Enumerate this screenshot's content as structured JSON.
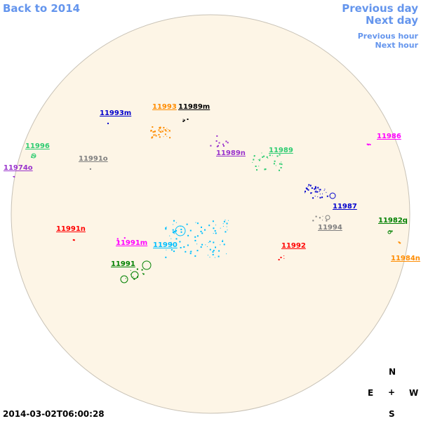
{
  "nav": {
    "back": "Back to 2014",
    "prev_day": "Previous day",
    "next_day": "Next day",
    "prev_hour": "Previous hour",
    "next_hour": "Next hour"
  },
  "timestamp": "2014-03-02T06:00:28",
  "compass": {
    "n": "N",
    "s": "S",
    "e": "E",
    "w": "W",
    "center": "+"
  },
  "colors": {
    "disk_fill": "#fdf5e6",
    "disk_stroke": "#c8c2b6",
    "nav": "#6495ed"
  },
  "regions": [
    {
      "id": "11993m",
      "label": "11993m",
      "color": "#0000cd"
    },
    {
      "id": "11993",
      "label": "11993",
      "color": "#ff8c00"
    },
    {
      "id": "11989m",
      "label": "11989m",
      "color": "#000000"
    },
    {
      "id": "11996",
      "label": "11996",
      "color": "#2ecc71"
    },
    {
      "id": "11974o",
      "label": "11974o",
      "color": "#9932cc"
    },
    {
      "id": "11991o",
      "label": "11991o",
      "color": "#808080"
    },
    {
      "id": "11989n",
      "label": "11989n",
      "color": "#9932cc"
    },
    {
      "id": "11989",
      "label": "11989",
      "color": "#2ecc71"
    },
    {
      "id": "11986",
      "label": "11986",
      "color": "#ff00ff"
    },
    {
      "id": "11987",
      "label": "11987",
      "color": "#0000cd"
    },
    {
      "id": "11982q",
      "label": "11982q",
      "color": "#008000"
    },
    {
      "id": "11994",
      "label": "11994",
      "color": "#808080"
    },
    {
      "id": "11991n",
      "label": "11991n",
      "color": "#ff0000"
    },
    {
      "id": "11991m",
      "label": "11991m",
      "color": "#ff00ff"
    },
    {
      "id": "11990",
      "label": "11990",
      "color": "#00bfff"
    },
    {
      "id": "11992",
      "label": "11992",
      "color": "#ff0000"
    },
    {
      "id": "11984n",
      "label": "11984n",
      "color": "#ff8c00"
    },
    {
      "id": "11991",
      "label": "11991",
      "color": "#008000"
    }
  ]
}
